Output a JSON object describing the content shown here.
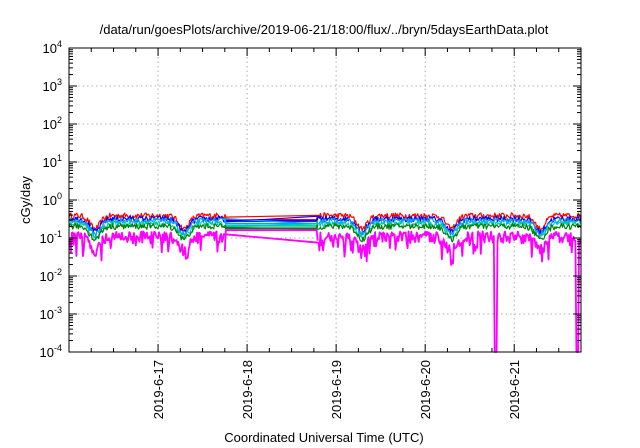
{
  "chart_data": {
    "type": "line",
    "title": "/data/run/goesPlots/archive/2019-06-21/18:00/flux/../bryn/5daysEarthData.plot",
    "xlabel": "Coordinated Universal Time (UTC)",
    "ylabel": "cGy/day",
    "yscale": "log",
    "ylim": [
      0.0001,
      10000
    ],
    "xlim": [
      "2019-06-16 00:00",
      "2019-06-21 18:00"
    ],
    "grid": true,
    "legend": "none",
    "y_ticks": [
      {
        "base": "10",
        "exp": "-4"
      },
      {
        "base": "10",
        "exp": "-3"
      },
      {
        "base": "10",
        "exp": "-2"
      },
      {
        "base": "10",
        "exp": "-1"
      },
      {
        "base": "10",
        "exp": "0"
      },
      {
        "base": "10",
        "exp": "1"
      },
      {
        "base": "10",
        "exp": "2"
      },
      {
        "base": "10",
        "exp": "3"
      },
      {
        "base": "10",
        "exp": "4"
      }
    ],
    "x_ticks": [
      "2019-6-17",
      "2019-6-18",
      "2019-6-19",
      "2019-6-20",
      "2019-6-21"
    ],
    "data_gap": [
      "2019-06-17 18:00",
      "2019-06-18 19:00"
    ],
    "series": [
      {
        "color": "#ff0000",
        "level": 0.4,
        "gap_level": 0.3
      },
      {
        "color": "#0000ff",
        "level": 0.33,
        "gap_level": 0.28
      },
      {
        "color": "#00a0ff",
        "level": 0.29,
        "gap_level": 0.24
      },
      {
        "color": "#00ccaa",
        "level": 0.24,
        "gap_level": 0.21
      },
      {
        "color": "#008000",
        "level": 0.21,
        "gap_level": 0.18
      },
      {
        "color": "#ff00ff",
        "level": 0.13,
        "gap_level": 0.16
      }
    ],
    "dropouts": [
      "2019-06-20 19:00",
      "2019-06-21 17:00"
    ]
  }
}
